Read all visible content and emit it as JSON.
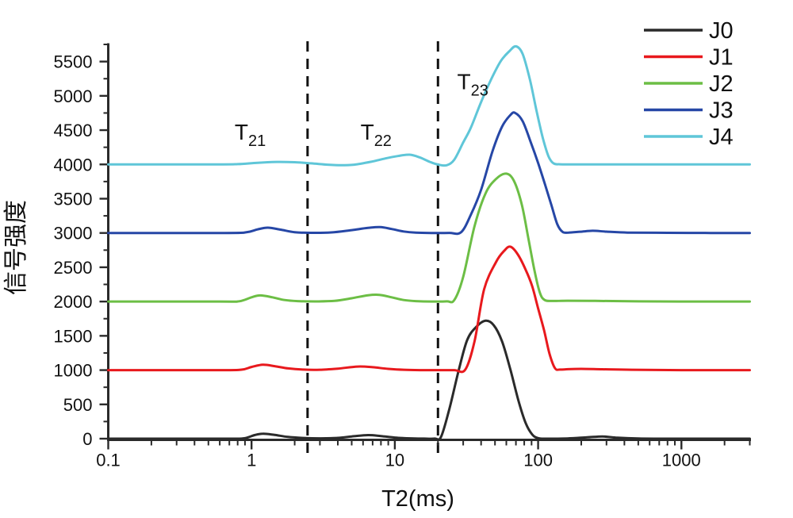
{
  "chart_data": {
    "type": "line",
    "title": "",
    "xlabel": "T2(ms)",
    "ylabel": "信号强度",
    "x_scale": "log",
    "xlim": [
      0.1,
      3000
    ],
    "ylim": [
      0,
      5750
    ],
    "grid": false,
    "legend_position": "top-right",
    "x_major_ticks": [
      0.1,
      1,
      10,
      100,
      1000
    ],
    "x_tick_labels": [
      "0.1",
      "1",
      "10",
      "100",
      "1000"
    ],
    "y_major_tick_step": 500,
    "y_minor_tick_step": 250,
    "y_label_max": 5500,
    "boundary_lines_x_ms": [
      2.46,
      20
    ],
    "annotations": [
      {
        "label": "T",
        "sub": "21",
        "x": 0.98,
        "y": 4480
      },
      {
        "label": "T",
        "sub": "22",
        "x": 7.4,
        "y": 4480
      },
      {
        "label": "T",
        "sub": "23",
        "x": 35.0,
        "y": 5210
      }
    ],
    "series": [
      {
        "name": "J0",
        "color": "#2a2a2a",
        "baseline": 0,
        "points": [
          [
            0.1,
            0
          ],
          [
            0.5,
            0
          ],
          [
            0.75,
            0
          ],
          [
            0.9,
            8
          ],
          [
            1.05,
            52
          ],
          [
            1.2,
            72
          ],
          [
            1.45,
            55
          ],
          [
            1.8,
            25
          ],
          [
            2.3,
            10
          ],
          [
            3,
            5
          ],
          [
            4,
            12
          ],
          [
            5,
            32
          ],
          [
            6.5,
            52
          ],
          [
            8,
            38
          ],
          [
            10,
            16
          ],
          [
            13,
            5
          ],
          [
            16,
            1
          ],
          [
            19,
            1
          ],
          [
            21,
            25
          ],
          [
            24,
            430
          ],
          [
            28,
            1010
          ],
          [
            32,
            1440
          ],
          [
            37,
            1630
          ],
          [
            43,
            1720
          ],
          [
            49,
            1655
          ],
          [
            56,
            1420
          ],
          [
            64,
            1010
          ],
          [
            73,
            550
          ],
          [
            82,
            225
          ],
          [
            91,
            60
          ],
          [
            100,
            8
          ],
          [
            115,
            0
          ],
          [
            160,
            4
          ],
          [
            220,
            20
          ],
          [
            280,
            32
          ],
          [
            350,
            15
          ],
          [
            500,
            3
          ],
          [
            1000,
            0
          ],
          [
            3000,
            0
          ]
        ]
      },
      {
        "name": "J1",
        "color": "#e8191d",
        "baseline": 1000,
        "points": [
          [
            0.1,
            1000
          ],
          [
            0.6,
            1000
          ],
          [
            0.85,
            1006
          ],
          [
            1.0,
            1046
          ],
          [
            1.2,
            1078
          ],
          [
            1.45,
            1058
          ],
          [
            1.8,
            1025
          ],
          [
            2.3,
            1008
          ],
          [
            3,
            1005
          ],
          [
            4,
            1022
          ],
          [
            5.5,
            1052
          ],
          [
            7,
            1042
          ],
          [
            9,
            1018
          ],
          [
            11.5,
            1005
          ],
          [
            15,
            1000
          ],
          [
            20,
            1000
          ],
          [
            26,
            1000
          ],
          [
            31,
            1006
          ],
          [
            36,
            1420
          ],
          [
            42,
            2180
          ],
          [
            51,
            2580
          ],
          [
            58,
            2740
          ],
          [
            64,
            2800
          ],
          [
            72,
            2690
          ],
          [
            82,
            2460
          ],
          [
            91,
            2220
          ],
          [
            100,
            1900
          ],
          [
            110,
            1580
          ],
          [
            120,
            1240
          ],
          [
            131,
            1028
          ],
          [
            142,
            1008
          ],
          [
            162,
            1014
          ],
          [
            200,
            1018
          ],
          [
            280,
            1012
          ],
          [
            450,
            1005
          ],
          [
            1000,
            1000
          ],
          [
            3000,
            1000
          ]
        ]
      },
      {
        "name": "J2",
        "color": "#6cbe45",
        "baseline": 2000,
        "points": [
          [
            0.1,
            2000
          ],
          [
            0.6,
            2000
          ],
          [
            0.82,
            2004
          ],
          [
            1.0,
            2062
          ],
          [
            1.15,
            2090
          ],
          [
            1.4,
            2062
          ],
          [
            1.7,
            2022
          ],
          [
            2.1,
            2006
          ],
          [
            2.8,
            2002
          ],
          [
            3.8,
            2010
          ],
          [
            5,
            2048
          ],
          [
            6.5,
            2092
          ],
          [
            7.8,
            2098
          ],
          [
            9.5,
            2062
          ],
          [
            11.5,
            2022
          ],
          [
            14,
            2006
          ],
          [
            18,
            2000
          ],
          [
            23,
            2003
          ],
          [
            26,
            2022
          ],
          [
            30,
            2360
          ],
          [
            36,
            3100
          ],
          [
            43,
            3580
          ],
          [
            51,
            3790
          ],
          [
            60,
            3865
          ],
          [
            68,
            3755
          ],
          [
            77,
            3410
          ],
          [
            86,
            2890
          ],
          [
            95,
            2420
          ],
          [
            103,
            2125
          ],
          [
            111,
            2022
          ],
          [
            126,
            2008
          ],
          [
            160,
            2012
          ],
          [
            250,
            2010
          ],
          [
            500,
            2003
          ],
          [
            1200,
            2000
          ],
          [
            3000,
            2000
          ]
        ]
      },
      {
        "name": "J3",
        "color": "#2647a6",
        "baseline": 3000,
        "points": [
          [
            0.1,
            3000
          ],
          [
            0.65,
            3000
          ],
          [
            0.92,
            3010
          ],
          [
            1.1,
            3052
          ],
          [
            1.3,
            3078
          ],
          [
            1.6,
            3048
          ],
          [
            2.0,
            3012
          ],
          [
            2.6,
            3002
          ],
          [
            3.6,
            3008
          ],
          [
            5,
            3042
          ],
          [
            6.5,
            3074
          ],
          [
            7.9,
            3086
          ],
          [
            9.5,
            3058
          ],
          [
            11.5,
            3022
          ],
          [
            14,
            3006
          ],
          [
            18,
            3000
          ],
          [
            24,
            3001
          ],
          [
            29,
            3010
          ],
          [
            34,
            3270
          ],
          [
            40,
            3630
          ],
          [
            48,
            4190
          ],
          [
            56,
            4550
          ],
          [
            64,
            4720
          ],
          [
            69,
            4752
          ],
          [
            78,
            4630
          ],
          [
            89,
            4320
          ],
          [
            100,
            4020
          ],
          [
            112,
            3700
          ],
          [
            124,
            3400
          ],
          [
            136,
            3130
          ],
          [
            148,
            3016
          ],
          [
            163,
            3006
          ],
          [
            196,
            3018
          ],
          [
            240,
            3032
          ],
          [
            300,
            3020
          ],
          [
            420,
            3006
          ],
          [
            800,
            3002
          ],
          [
            1600,
            3000
          ],
          [
            3000,
            3000
          ]
        ]
      },
      {
        "name": "J4",
        "color": "#5fc6d8",
        "baseline": 4000,
        "points": [
          [
            0.1,
            4000
          ],
          [
            0.55,
            4000
          ],
          [
            0.8,
            4004
          ],
          [
            1.1,
            4024
          ],
          [
            1.5,
            4036
          ],
          [
            2.0,
            4032
          ],
          [
            2.6,
            4016
          ],
          [
            3.4,
            3996
          ],
          [
            4.2,
            3988
          ],
          [
            5.2,
            3996
          ],
          [
            6.8,
            4038
          ],
          [
            8.6,
            4088
          ],
          [
            10.5,
            4122
          ],
          [
            12.7,
            4142
          ],
          [
            15,
            4100
          ],
          [
            17.5,
            4038
          ],
          [
            20,
            3998
          ],
          [
            23,
            3988
          ],
          [
            26,
            4070
          ],
          [
            30,
            4320
          ],
          [
            34,
            4540
          ],
          [
            40,
            4910
          ],
          [
            47,
            5240
          ],
          [
            55,
            5510
          ],
          [
            63,
            5650
          ],
          [
            70,
            5722
          ],
          [
            78,
            5610
          ],
          [
            88,
            5220
          ],
          [
            98,
            4760
          ],
          [
            108,
            4380
          ],
          [
            118,
            4120
          ],
          [
            128,
            4016
          ],
          [
            142,
            4002
          ],
          [
            180,
            4000
          ],
          [
            500,
            4000
          ],
          [
            3000,
            4000
          ]
        ]
      }
    ],
    "colors": {
      "axis": "#2a2a2a",
      "boundary_line": "#111111",
      "background": "#ffffff"
    }
  }
}
